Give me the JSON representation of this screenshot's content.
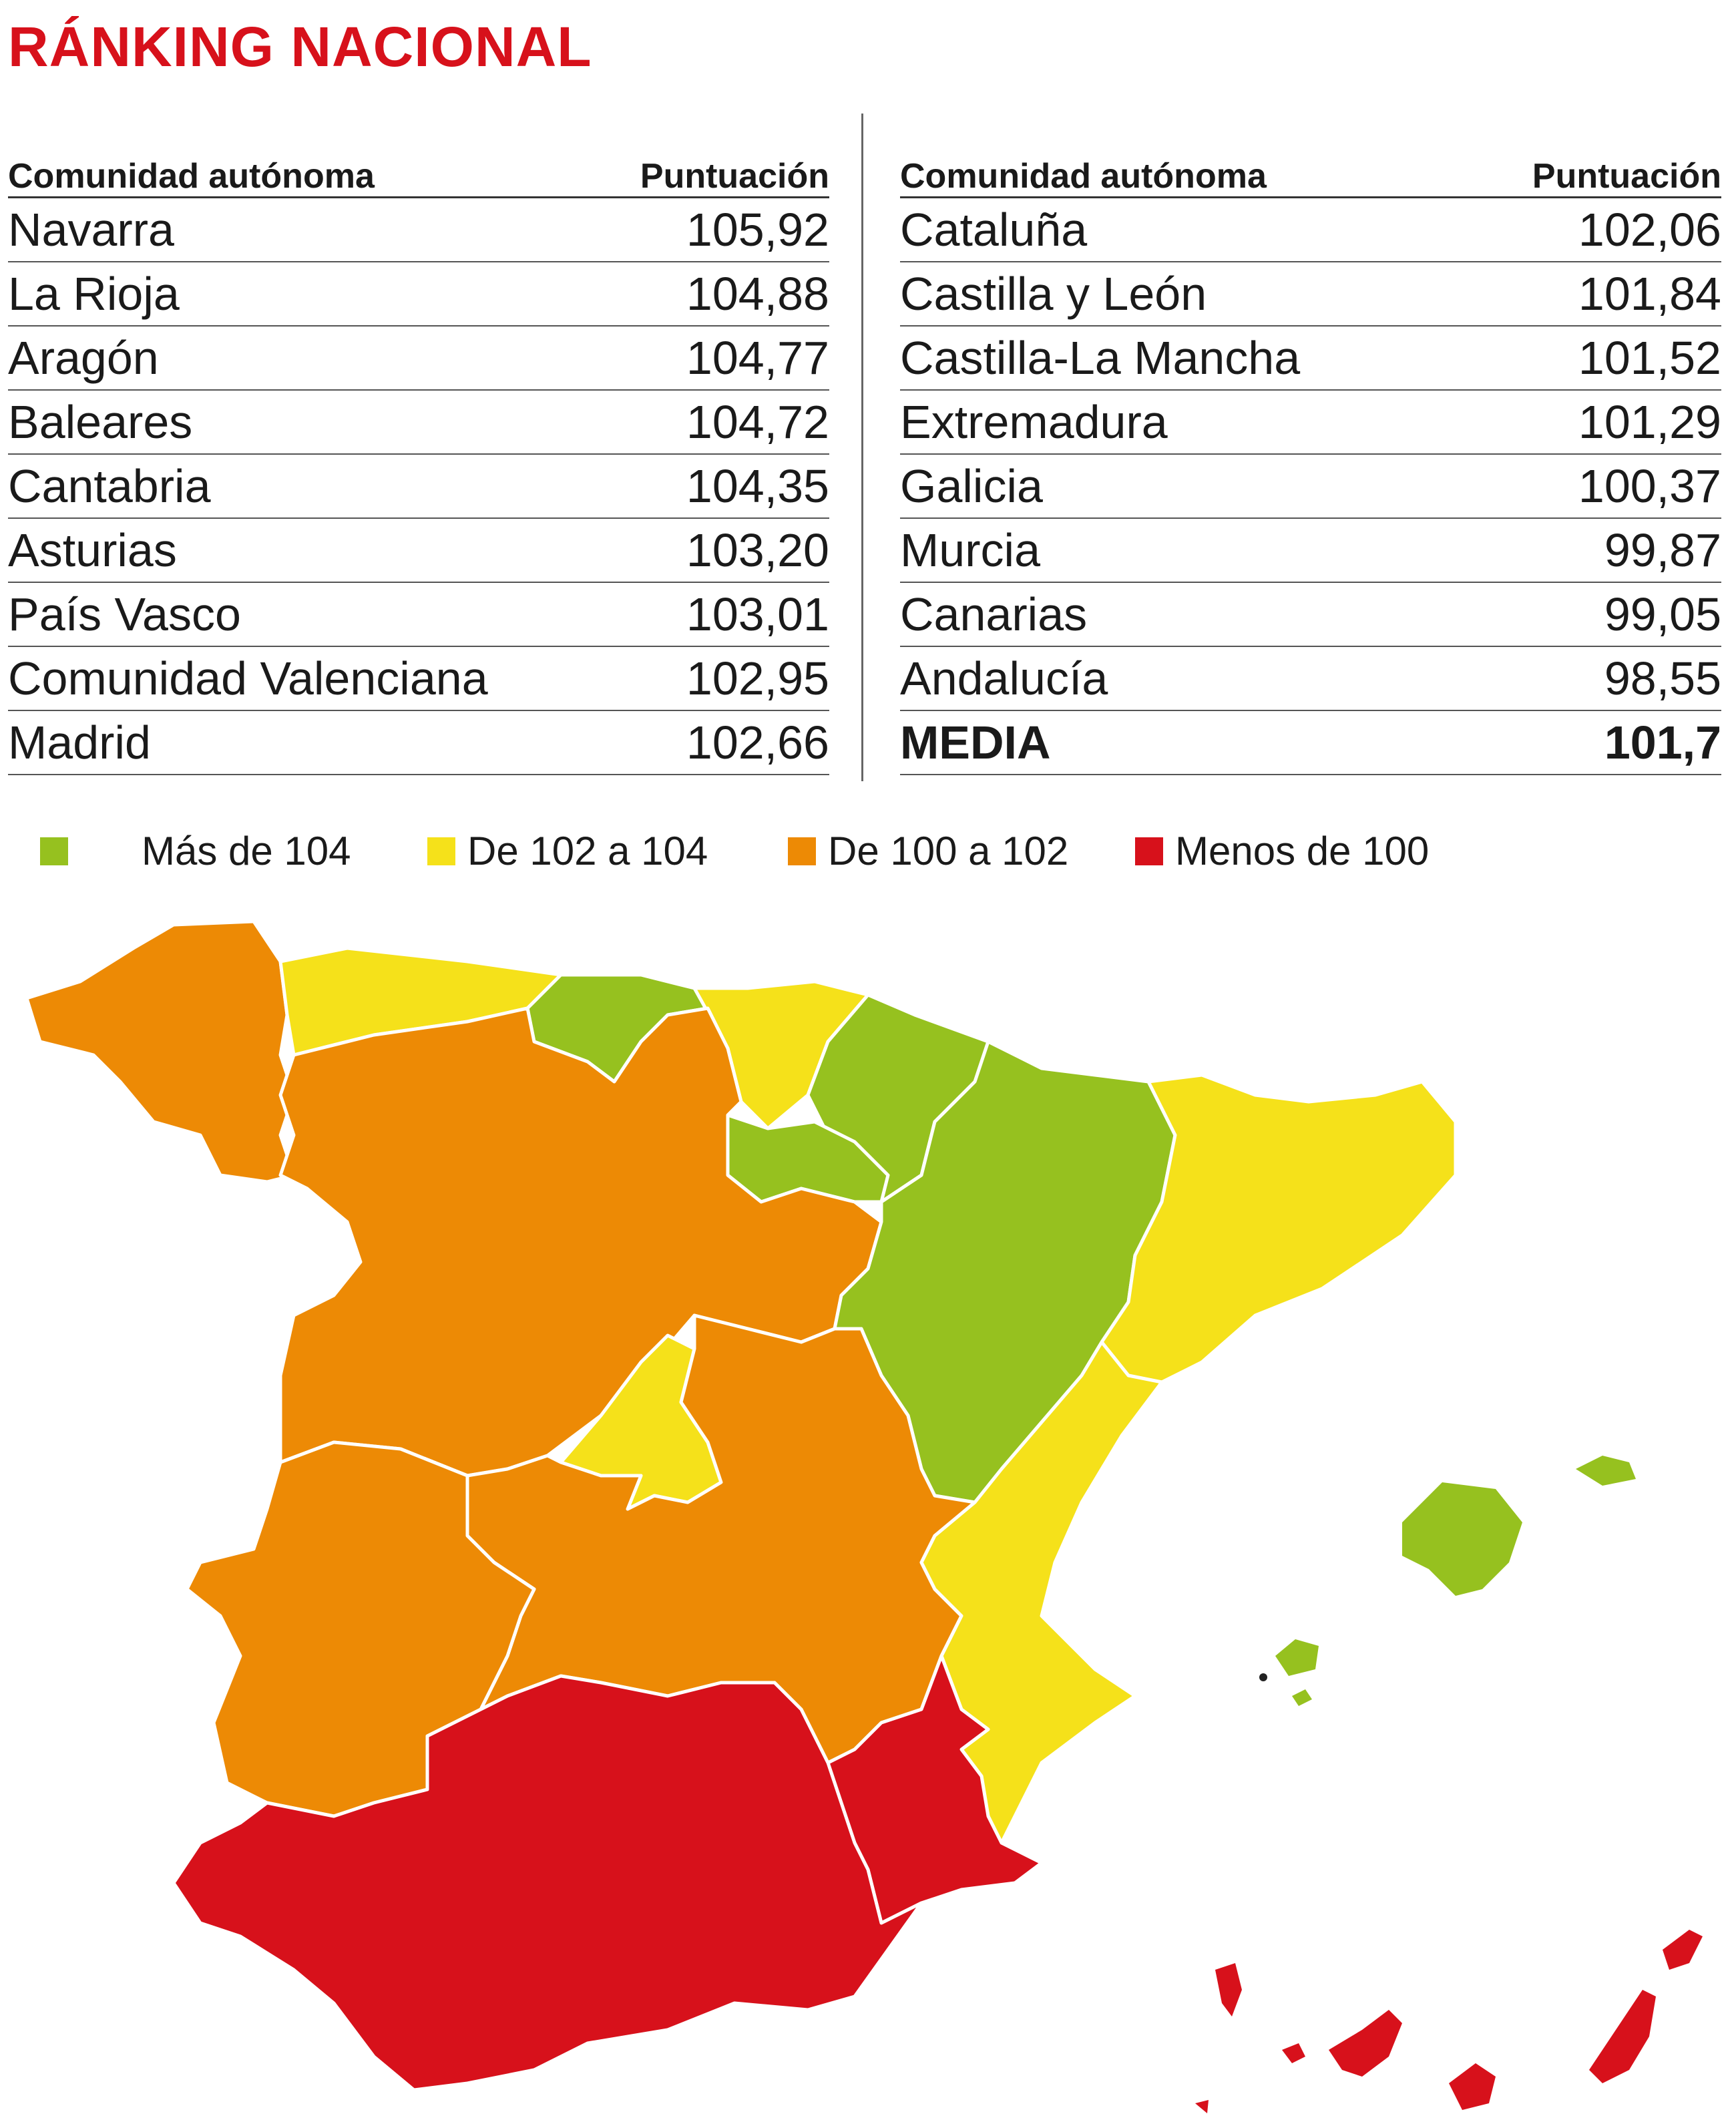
{
  "title": "RÁNKING NACIONAL",
  "table_headers": {
    "region": "Comunidad autónoma",
    "score": "Puntuación"
  },
  "left_rows": [
    {
      "region": "Navarra",
      "score": "105,92"
    },
    {
      "region": "La Rioja",
      "score": "104,88"
    },
    {
      "region": "Aragón",
      "score": "104,77"
    },
    {
      "region": "Baleares",
      "score": "104,72"
    },
    {
      "region": "Cantabria",
      "score": "104,35"
    },
    {
      "region": "Asturias",
      "score": "103,20"
    },
    {
      "region": "País Vasco",
      "score": "103,01"
    },
    {
      "region": "Comunidad Valenciana",
      "score": "102,95"
    },
    {
      "region": "Madrid",
      "score": "102,66"
    }
  ],
  "right_rows": [
    {
      "region": "Cataluña",
      "score": "102,06"
    },
    {
      "region": "Castilla y León",
      "score": "101,84"
    },
    {
      "region": "Castilla-La Mancha",
      "score": "101,52"
    },
    {
      "region": "Extremadura",
      "score": "101,29"
    },
    {
      "region": "Galicia",
      "score": "100,37"
    },
    {
      "region": "Murcia",
      "score": "99,87"
    },
    {
      "region": "Canarias",
      "score": "99,05"
    },
    {
      "region": "Andalucía",
      "score": "98,55"
    },
    {
      "region": "MEDIA",
      "score": "101,7"
    }
  ],
  "legend": [
    {
      "label": "Más de 104",
      "color": "#96c11f"
    },
    {
      "label": "De 102 a 104",
      "color": "#f5e11a"
    },
    {
      "label": "De 100 a 102",
      "color": "#ed8a05"
    },
    {
      "label": "Menos de 100",
      "color": "#d7111b"
    }
  ],
  "colors": {
    "green": "#96c11f",
    "yellow": "#f5e11a",
    "orange": "#ed8a05",
    "red": "#d7111b",
    "title": "#d7111b"
  }
}
